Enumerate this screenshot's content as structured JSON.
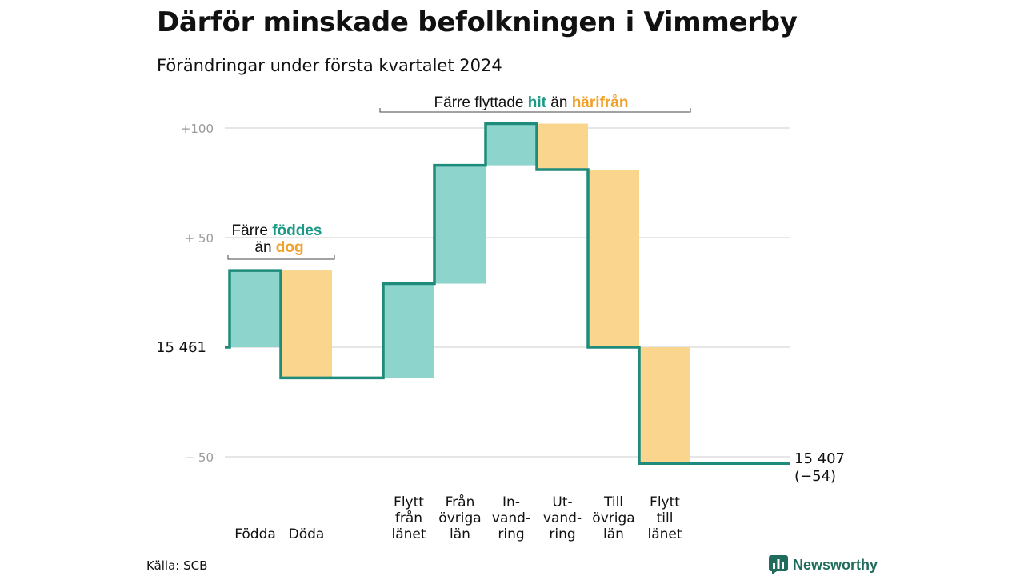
{
  "header": {
    "title": "Därför minskade befolkningen i Vimmerby",
    "subtitle": "Förändringar under första kvartalet 2024"
  },
  "footer": {
    "source": "Källa: SCB",
    "logo_text": "Newsworthy",
    "logo_icon": "bar-chart-icon"
  },
  "colors": {
    "line": "#1f8c7b",
    "increase": "#8dd5cc",
    "decrease": "#fad58d",
    "accent_teal": "#1a9a86",
    "accent_orange": "#f0a12a",
    "grid": "#dddddd"
  },
  "chart_data": {
    "type": "waterfall",
    "title": "Därför minskade befolkningen i Vimmerby",
    "subtitle": "Förändringar under första kvartalet 2024",
    "start": {
      "label": "15  461",
      "value": 15461
    },
    "end": {
      "label": "15 407",
      "change_label": "(−54)",
      "value": 15407,
      "change": -54
    },
    "y_axis": {
      "ticks": [
        {
          "value": 100,
          "label": "+100"
        },
        {
          "value": 50,
          "label": "+  50"
        },
        {
          "value": 0,
          "label": ""
        },
        {
          "value": -50,
          "label": "−  50"
        }
      ],
      "ylim": [
        -56,
        102
      ],
      "grid": true
    },
    "categories": [
      {
        "lines": [
          "Födda"
        ],
        "change": 35,
        "kind": "in"
      },
      {
        "lines": [
          "Döda"
        ],
        "change": -49,
        "kind": "out"
      },
      {
        "lines": [],
        "change": 0,
        "kind": "gap"
      },
      {
        "lines": [
          "Flytt",
          "från",
          "länet"
        ],
        "change": 43,
        "kind": "in"
      },
      {
        "lines": [
          "Från",
          "övriga",
          "län"
        ],
        "change": 54,
        "kind": "in"
      },
      {
        "lines": [
          "In-",
          "vand-",
          "ring"
        ],
        "change": 19,
        "kind": "in"
      },
      {
        "lines": [
          "Ut-",
          "vand-",
          "ring"
        ],
        "change": -21,
        "kind": "out"
      },
      {
        "lines": [
          "Till",
          "övriga",
          "län"
        ],
        "change": -81,
        "kind": "out"
      },
      {
        "lines": [
          "Flytt",
          "till",
          "länet"
        ],
        "change": -53,
        "kind": "out"
      }
    ],
    "annotations": [
      {
        "line1_pre": "Färre ",
        "line1_emph": "föddes",
        "line2_pre": "än ",
        "line2_emph": "dog"
      },
      {
        "pre": "Färre flyttade ",
        "emph1": "hit",
        "mid": " än ",
        "emph2": "härifrån"
      }
    ]
  }
}
